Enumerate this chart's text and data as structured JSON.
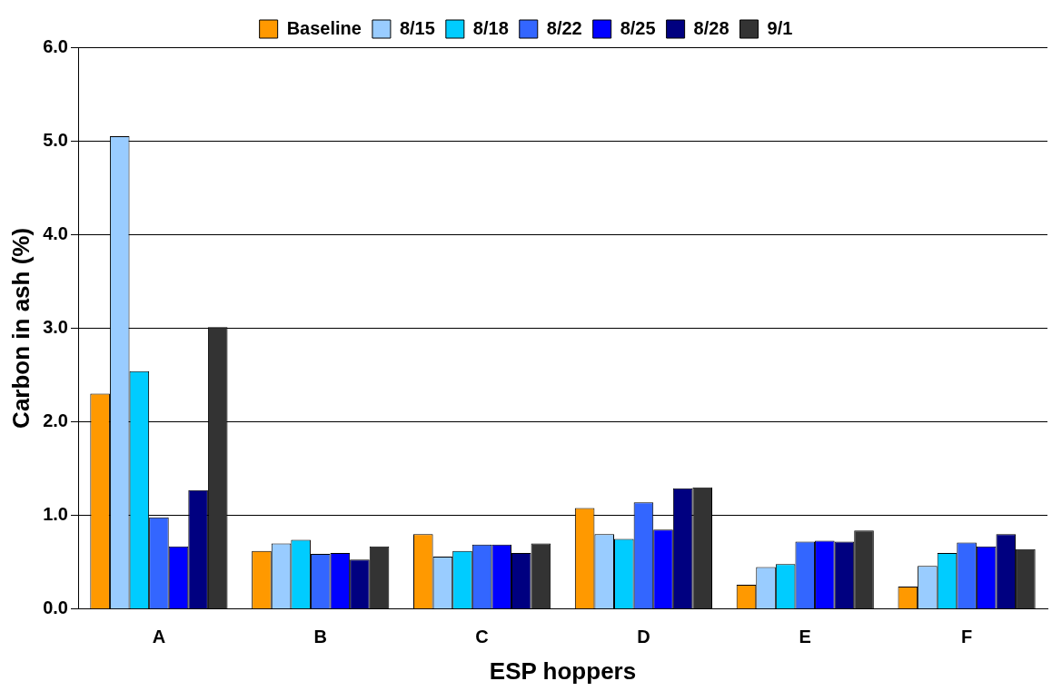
{
  "chart_data": {
    "type": "bar",
    "xlabel": "ESP hoppers",
    "ylabel": "Carbon in ash (%)",
    "categories": [
      "A",
      "B",
      "C",
      "D",
      "E",
      "F"
    ],
    "series": [
      {
        "name": "Baseline",
        "color": "#ff9900",
        "values": [
          2.3,
          0.62,
          0.8,
          1.08,
          0.26,
          0.24
        ]
      },
      {
        "name": "8/15",
        "color": "#99ccff",
        "values": [
          5.05,
          0.7,
          0.56,
          0.8,
          0.45,
          0.46
        ]
      },
      {
        "name": "8/18",
        "color": "#00ccff",
        "values": [
          2.54,
          0.74,
          0.62,
          0.75,
          0.48,
          0.6
        ]
      },
      {
        "name": "8/22",
        "color": "#3366ff",
        "values": [
          0.98,
          0.59,
          0.69,
          1.14,
          0.72,
          0.71
        ]
      },
      {
        "name": "8/25",
        "color": "#0000ff",
        "values": [
          0.67,
          0.6,
          0.69,
          0.85,
          0.73,
          0.67
        ]
      },
      {
        "name": "8/28",
        "color": "#000080",
        "values": [
          1.27,
          0.53,
          0.6,
          1.29,
          0.72,
          0.8
        ]
      },
      {
        "name": "9/1",
        "color": "#333333",
        "values": [
          3.01,
          0.67,
          0.7,
          1.3,
          0.84,
          0.64
        ]
      }
    ],
    "ylim": [
      0,
      6
    ],
    "yticks": [
      {
        "value": 0,
        "label": "0.0"
      },
      {
        "value": 1,
        "label": "1.0"
      },
      {
        "value": 2,
        "label": "2.0"
      },
      {
        "value": 3,
        "label": "3.0"
      },
      {
        "value": 4,
        "label": "4.0"
      },
      {
        "value": 5,
        "label": "5.0"
      },
      {
        "value": 6,
        "label": "6.0"
      }
    ],
    "grid": "y",
    "legend": "top"
  }
}
